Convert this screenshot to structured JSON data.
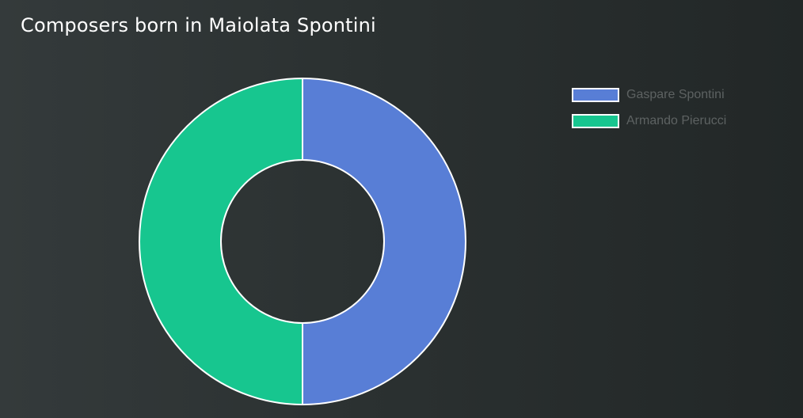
{
  "chart_data": {
    "type": "pie",
    "variant": "doughnut",
    "title": "Composers born in Maiolata Spontini",
    "categories": [
      "Gaspare Spontini",
      "Armando Pierucci"
    ],
    "values": [
      1,
      1
    ],
    "colors": [
      "#587ed6",
      "#17c68f"
    ],
    "legend_position": "right"
  },
  "legend": {
    "items": [
      {
        "label": "Gaspare Spontini",
        "color": "#587ed6"
      },
      {
        "label": "Armando Pierucci",
        "color": "#17c68f"
      }
    ]
  }
}
